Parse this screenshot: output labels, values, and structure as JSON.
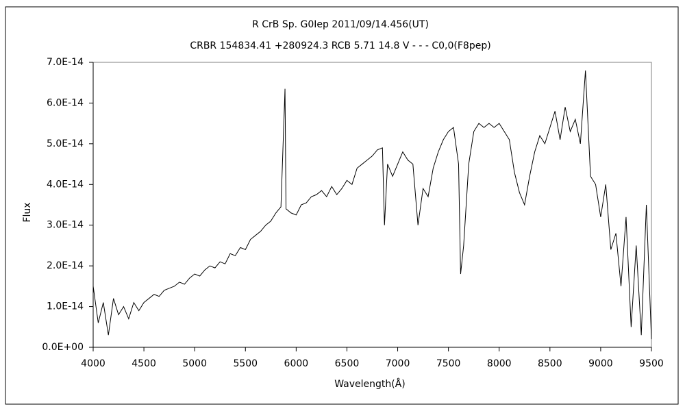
{
  "chart_data": {
    "type": "line",
    "title": "R CrB    Sp. G0Iep    2011/09/14.456(UT)",
    "subtitle": "CRBR 154834.41 +280924.3 RCB 5.71 14.8 V - - - C0,0(F8pep)",
    "x_label": "Wavelength(Å)",
    "y_label": "Flux",
    "xlim": [
      4000,
      9500
    ],
    "xticks": [
      4000,
      4500,
      5000,
      5500,
      6000,
      6500,
      7000,
      7500,
      8000,
      8500,
      9000,
      9500
    ],
    "ylim": [
      0,
      7e-14
    ],
    "yticks": [
      {
        "value": 0,
        "label": "0.0E+00"
      },
      {
        "value": 1e-14,
        "label": "1.0E-14"
      },
      {
        "value": 2e-14,
        "label": "2.0E-14"
      },
      {
        "value": 3e-14,
        "label": "3.0E-14"
      },
      {
        "value": 4e-14,
        "label": "4.0E-14"
      },
      {
        "value": 5e-14,
        "label": "5.0E-14"
      },
      {
        "value": 6e-14,
        "label": "6.0E-14"
      },
      {
        "value": 7e-14,
        "label": "7.0E-14"
      }
    ],
    "series": [
      {
        "color": "#000000",
        "x": [
          4000,
          4050,
          4100,
          4150,
          4200,
          4250,
          4300,
          4350,
          4400,
          4450,
          4500,
          4550,
          4600,
          4650,
          4700,
          4750,
          4800,
          4850,
          4900,
          4950,
          5000,
          5050,
          5100,
          5150,
          5200,
          5250,
          5300,
          5350,
          5400,
          5450,
          5500,
          5550,
          5600,
          5650,
          5700,
          5750,
          5800,
          5850,
          5890,
          5900,
          5950,
          6000,
          6050,
          6100,
          6150,
          6200,
          6250,
          6300,
          6350,
          6400,
          6450,
          6500,
          6550,
          6600,
          6650,
          6700,
          6750,
          6800,
          6850,
          6870,
          6900,
          6950,
          7000,
          7050,
          7100,
          7150,
          7200,
          7250,
          7300,
          7350,
          7400,
          7450,
          7500,
          7550,
          7600,
          7620,
          7650,
          7700,
          7750,
          7800,
          7850,
          7900,
          7950,
          8000,
          8050,
          8100,
          8150,
          8200,
          8250,
          8300,
          8350,
          8400,
          8450,
          8500,
          8550,
          8600,
          8650,
          8700,
          8750,
          8800,
          8850,
          8900,
          8950,
          9000,
          9050,
          9100,
          9150,
          9200,
          9250,
          9300,
          9350,
          9400,
          9450,
          9500
        ],
        "values": [
          1.5e-14,
          6e-15,
          1.1e-14,
          3e-15,
          1.2e-14,
          8e-15,
          1e-14,
          7e-15,
          1.1e-14,
          9e-15,
          1.1e-14,
          1.2e-14,
          1.3e-14,
          1.25e-14,
          1.4e-14,
          1.45e-14,
          1.5e-14,
          1.6e-14,
          1.55e-14,
          1.7e-14,
          1.8e-14,
          1.75e-14,
          1.9e-14,
          2e-14,
          1.95e-14,
          2.1e-14,
          2.05e-14,
          2.3e-14,
          2.25e-14,
          2.45e-14,
          2.4e-14,
          2.65e-14,
          2.75e-14,
          2.85e-14,
          3e-14,
          3.1e-14,
          3.3e-14,
          3.45e-14,
          6.35e-14,
          3.4e-14,
          3.3e-14,
          3.25e-14,
          3.5e-14,
          3.55e-14,
          3.7e-14,
          3.75e-14,
          3.85e-14,
          3.7e-14,
          3.95e-14,
          3.75e-14,
          3.9e-14,
          4.1e-14,
          4e-14,
          4.4e-14,
          4.5e-14,
          4.6e-14,
          4.7e-14,
          4.85e-14,
          4.9e-14,
          3e-14,
          4.5e-14,
          4.2e-14,
          4.5e-14,
          4.8e-14,
          4.6e-14,
          4.5e-14,
          3e-14,
          3.9e-14,
          3.7e-14,
          4.4e-14,
          4.8e-14,
          5.1e-14,
          5.3e-14,
          5.4e-14,
          4.5e-14,
          1.8e-14,
          2.5e-14,
          4.5e-14,
          5.3e-14,
          5.5e-14,
          5.4e-14,
          5.5e-14,
          5.4e-14,
          5.5e-14,
          5.3e-14,
          5.1e-14,
          4.3e-14,
          3.8e-14,
          3.5e-14,
          4.2e-14,
          4.8e-14,
          5.2e-14,
          5e-14,
          5.4e-14,
          5.8e-14,
          5.1e-14,
          5.9e-14,
          5.3e-14,
          5.6e-14,
          5e-14,
          6.8e-14,
          4.2e-14,
          4e-14,
          3.2e-14,
          4e-14,
          2.4e-14,
          2.8e-14,
          1.5e-14,
          3.2e-14,
          5e-15,
          2.5e-14,
          3e-15,
          3.5e-14,
          2e-15
        ]
      }
    ]
  }
}
